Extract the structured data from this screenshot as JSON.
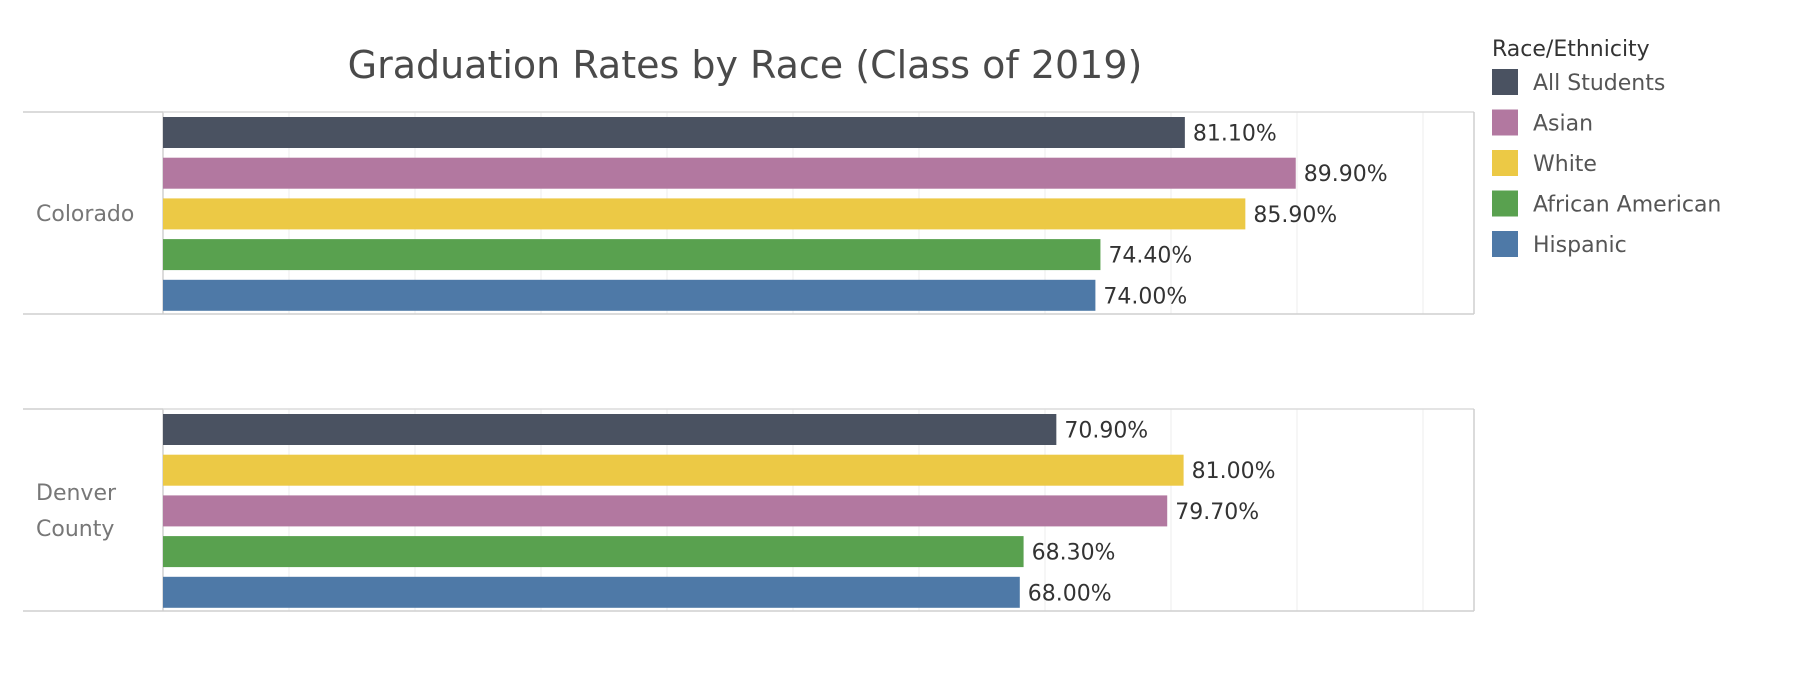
{
  "chart_data": {
    "type": "bar",
    "orientation": "horizontal",
    "title": "Graduation Rates by Race (Class of 2019)",
    "xlabel": "",
    "ylabel": "",
    "xlim": [
      0,
      100
    ],
    "value_suffix": "%",
    "grid": true,
    "legend_position": "top-right",
    "legend": {
      "title": "Race/Ethnicity",
      "items": [
        {
          "name": "All Students",
          "color": "#4a5261"
        },
        {
          "name": "Asian",
          "color": "#b278a0"
        },
        {
          "name": "White",
          "color": "#ecc945"
        },
        {
          "name": "African American",
          "color": "#59a14f"
        },
        {
          "name": "Hispanic",
          "color": "#4e79a7"
        }
      ]
    },
    "panels": [
      {
        "region_lines": [
          "Colorado"
        ],
        "bars": [
          {
            "series": "All Students",
            "value": 81.1,
            "label": "81.10%"
          },
          {
            "series": "Asian",
            "value": 89.9,
            "label": "89.90%"
          },
          {
            "series": "White",
            "value": 85.9,
            "label": "85.90%"
          },
          {
            "series": "African American",
            "value": 74.4,
            "label": "74.40%"
          },
          {
            "series": "Hispanic",
            "value": 74.0,
            "label": "74.00%"
          }
        ]
      },
      {
        "region_lines": [
          "Denver",
          "County"
        ],
        "bars": [
          {
            "series": "All Students",
            "value": 70.9,
            "label": "70.90%"
          },
          {
            "series": "White",
            "value": 81.0,
            "label": "81.00%"
          },
          {
            "series": "Asian",
            "value": 79.7,
            "label": "79.70%"
          },
          {
            "series": "African American",
            "value": 68.3,
            "label": "68.30%"
          },
          {
            "series": "Hispanic",
            "value": 68.0,
            "label": "68.00%"
          }
        ]
      }
    ]
  }
}
